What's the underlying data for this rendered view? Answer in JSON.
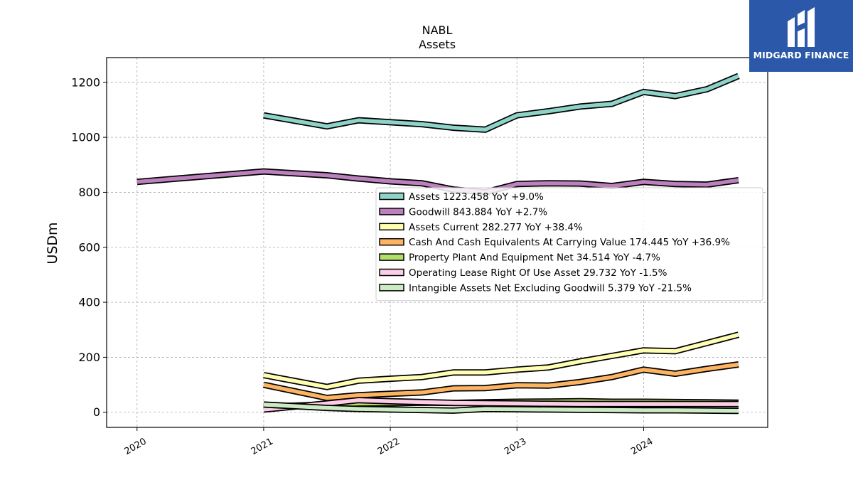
{
  "brand": {
    "name": "MIDGARD FINANCE",
    "bg_color": "#2c58a9"
  },
  "chart_data": {
    "type": "line",
    "title": "NABL",
    "subtitle": "Assets",
    "ylabel": "USDm",
    "xlabel": "",
    "ylim": [
      -55,
      1290
    ],
    "xlim": [
      2019.76,
      2024.98
    ],
    "yticks": [
      0,
      200,
      400,
      600,
      800,
      1000,
      1200
    ],
    "xticks": [
      2020,
      2021,
      2022,
      2023,
      2024
    ],
    "grid": true,
    "legend_position": "center-right",
    "series": [
      {
        "name": "Assets",
        "legend": "Assets  1223.458 YoY +9.0%",
        "color": "#8dd3c7",
        "x": [
          2021.0,
          2021.5,
          2021.75,
          2022.0,
          2022.25,
          2022.5,
          2022.75,
          2023.0,
          2023.25,
          2023.5,
          2023.75,
          2024.0,
          2024.25,
          2024.5,
          2024.75
        ],
        "y": [
          1080,
          1040,
          1062,
          1055,
          1048,
          1035,
          1028,
          1080,
          1095,
          1112,
          1122,
          1165,
          1150,
          1175,
          1223
        ]
      },
      {
        "name": "Goodwill",
        "legend": "Goodwill  843.884 YoY +2.7%",
        "color": "#bc80bd",
        "x": [
          2020.0,
          2021.0,
          2021.5,
          2021.75,
          2022.0,
          2022.25,
          2022.5,
          2022.75,
          2023.0,
          2023.25,
          2023.5,
          2023.75,
          2024.0,
          2024.25,
          2024.5,
          2024.75
        ],
        "y": [
          838,
          876,
          862,
          850,
          840,
          833,
          810,
          800,
          830,
          833,
          832,
          823,
          838,
          830,
          828,
          844
        ]
      },
      {
        "name": "Assets Current",
        "legend": "Assets Current  282.277 YoY +38.4%",
        "color": "#ffffb3",
        "x": [
          2021.0,
          2021.5,
          2021.75,
          2022.0,
          2022.25,
          2022.5,
          2022.75,
          2023.0,
          2023.25,
          2023.5,
          2023.75,
          2024.0,
          2024.25,
          2024.5,
          2024.75
        ],
        "y": [
          135,
          92,
          115,
          122,
          128,
          145,
          145,
          155,
          163,
          185,
          205,
          225,
          222,
          252,
          282
        ]
      },
      {
        "name": "Cash And Cash Equivalents At Carrying Value",
        "legend": "Cash And Cash Equivalents At Carrying Value  174.445 YoY +36.9%",
        "color": "#fdb462",
        "x": [
          2021.0,
          2021.5,
          2021.75,
          2022.0,
          2022.25,
          2022.5,
          2022.75,
          2023.0,
          2023.25,
          2023.5,
          2023.75,
          2024.0,
          2024.25,
          2024.5,
          2024.75
        ],
        "y": [
          100,
          52,
          62,
          67,
          72,
          87,
          88,
          98,
          97,
          110,
          128,
          155,
          140,
          158,
          174
        ]
      },
      {
        "name": "Property Plant And Equipment Net",
        "legend": "Property Plant And Equipment Net  34.514 YoY -4.7%",
        "color": "#b3de69",
        "x": [
          2021.0,
          2021.5,
          2021.75,
          2022.0,
          2022.25,
          2022.5,
          2022.75,
          2023.0,
          2023.25,
          2023.5,
          2023.75,
          2024.0,
          2024.25,
          2024.5,
          2024.75
        ],
        "y": [
          20,
          28,
          32,
          33,
          35,
          34,
          36,
          38,
          39,
          40,
          38,
          38,
          37,
          36,
          35
        ]
      },
      {
        "name": "Operating Lease Right Of Use Asset",
        "legend": "Operating Lease Right Of Use Asset  29.732 YoY -1.5%",
        "color": "#fccde5",
        "x": [
          2021.0,
          2021.5,
          2021.75,
          2022.0,
          2022.25,
          2022.5,
          2022.75,
          2023.0,
          2023.25,
          2023.5,
          2023.75,
          2024.0,
          2024.25,
          2024.5,
          2024.75
        ],
        "y": [
          10,
          32,
          44,
          40,
          37,
          34,
          33,
          32,
          31,
          30,
          30,
          30,
          30,
          30,
          30
        ]
      },
      {
        "name": "Intangible Assets Net Excluding Goodwill",
        "legend": "Intangible Assets Net Excluding Goodwill  5.379 YoY -21.5%",
        "color": "#ccebc5",
        "x": [
          2021.0,
          2021.5,
          2021.75,
          2022.0,
          2022.25,
          2022.5,
          2022.75,
          2023.0,
          2023.25,
          2023.5,
          2023.75,
          2024.0,
          2024.25,
          2024.5,
          2024.75
        ],
        "y": [
          28,
          16,
          12,
          10,
          8,
          6,
          12,
          11,
          10,
          9,
          8,
          7,
          7,
          6,
          5
        ]
      }
    ]
  }
}
